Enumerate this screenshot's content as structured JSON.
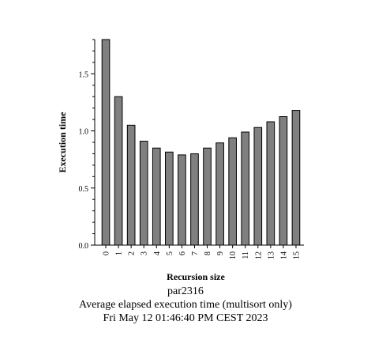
{
  "chart_data": {
    "type": "bar",
    "categories": [
      "0",
      "1",
      "2",
      "3",
      "4",
      "5",
      "6",
      "7",
      "8",
      "9",
      "10",
      "11",
      "12",
      "13",
      "14",
      "15"
    ],
    "values": [
      1.8,
      1.3,
      1.05,
      0.91,
      0.85,
      0.815,
      0.79,
      0.8,
      0.85,
      0.895,
      0.94,
      0.99,
      1.03,
      1.08,
      1.125,
      1.18
    ],
    "xlabel": "Recursion size",
    "ylabel": "Execution time",
    "ylim": [
      0,
      1.8
    ],
    "yticks": [
      "0.0",
      "0.5",
      "1.0",
      "1.5"
    ],
    "grid": false,
    "bar_color": "#808080",
    "bar_edge_color": "#000000"
  },
  "captions": {
    "host": "par2316",
    "description": "Average elapsed execution time (multisort only)",
    "timestamp": "Fri May 12 01:46:40 PM CEST 2023"
  }
}
